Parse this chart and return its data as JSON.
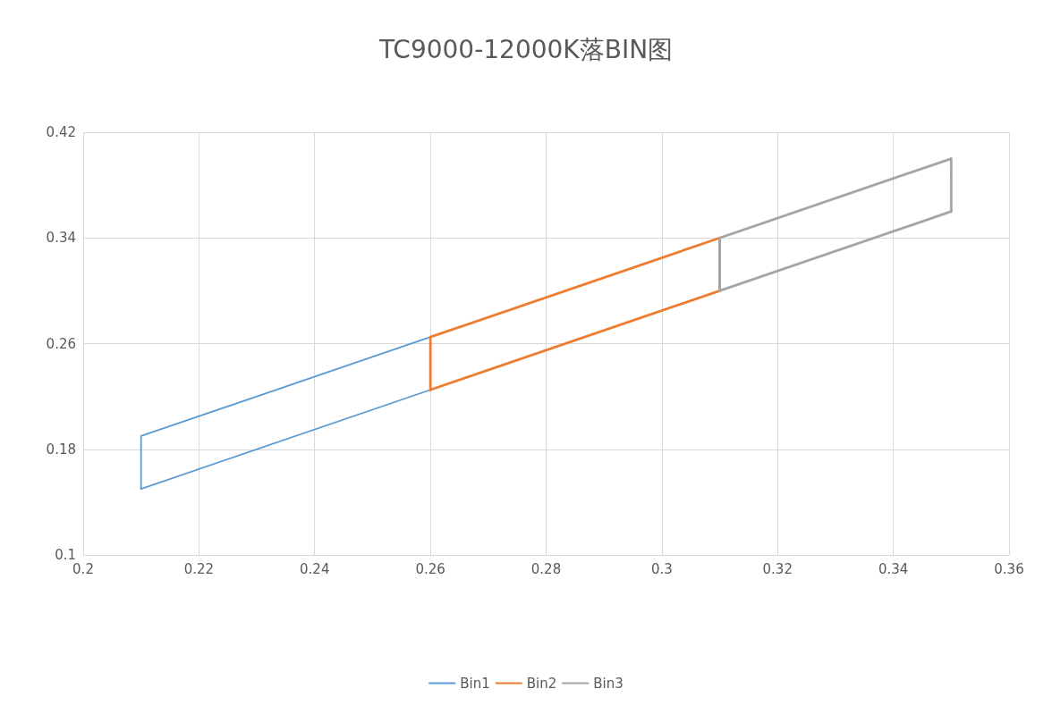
{
  "chart_data": {
    "type": "line",
    "title": "TC9000-12000K落BIN图",
    "series": [
      {
        "name": "Bin1",
        "color": "#5b9bd5",
        "x": [
          0.21,
          0.21,
          0.26,
          0.26
        ],
        "values": [
          0.15,
          0.19,
          0.265,
          0.225
        ]
      },
      {
        "color": "#5b9bd5",
        "x": [
          0.21,
          0.26
        ],
        "values": [
          0.15,
          0.225
        ]
      },
      {
        "name": "Bin2",
        "color": "#ed7d31",
        "x": [
          0.26,
          0.26,
          0.31,
          0.31
        ],
        "values": [
          0.225,
          0.265,
          0.34,
          0.3
        ]
      },
      {
        "color": "#ed7d31",
        "x": [
          0.26,
          0.31
        ],
        "values": [
          0.225,
          0.3
        ]
      },
      {
        "name": "Bin3",
        "color": "#a5a5a5",
        "x": [
          0.31,
          0.31,
          0.35,
          0.35
        ],
        "values": [
          0.3,
          0.34,
          0.4,
          0.36
        ]
      },
      {
        "color": "#a5a5a5",
        "x": [
          0.31,
          0.35
        ],
        "values": [
          0.3,
          0.36
        ]
      }
    ],
    "xlim": [
      0.2,
      0.36
    ],
    "xticks": [
      0.2,
      0.22,
      0.24,
      0.26,
      0.28,
      0.3,
      0.32,
      0.34,
      0.36
    ],
    "ylim": [
      0.1,
      0.42
    ],
    "yticks": [
      0.1,
      0.18,
      0.26,
      0.34,
      0.42
    ],
    "grid": true,
    "legend": "bottom",
    "marker": "none",
    "line_style": "solid"
  }
}
